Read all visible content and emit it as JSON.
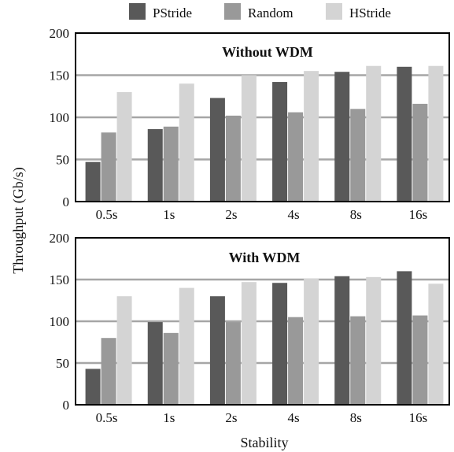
{
  "colors": {
    "PStride": "#595959",
    "Random": "#999999",
    "HStride": "#d4d4d4",
    "grid": "#a6a6a6",
    "frame": "#000000"
  },
  "chart_data": {
    "type": "bar",
    "ylabel": "Throughput (Gb/s)",
    "xlabel": "Stability",
    "legend": {
      "placement": "top-center",
      "entries": [
        "PStride",
        "Random",
        "HStride"
      ]
    },
    "categories": [
      "0.5s",
      "1s",
      "2s",
      "4s",
      "8s",
      "16s"
    ],
    "ylim": [
      0,
      200
    ],
    "yticks": [
      0,
      50,
      100,
      150,
      200
    ],
    "grid": "horizontal",
    "panels": [
      {
        "title": "Without WDM",
        "series": [
          {
            "name": "PStride",
            "values": [
              47,
              86,
              123,
              142,
              154,
              160
            ]
          },
          {
            "name": "Random",
            "values": [
              82,
              89,
              102,
              106,
              110,
              116
            ]
          },
          {
            "name": "HStride",
            "values": [
              130,
              140,
              150,
              155,
              161,
              161
            ]
          }
        ]
      },
      {
        "title": "With WDM",
        "series": [
          {
            "name": "PStride",
            "values": [
              43,
              99,
              130,
              146,
              154,
              160
            ]
          },
          {
            "name": "Random",
            "values": [
              80,
              86,
              99,
              105,
              106,
              107
            ]
          },
          {
            "name": "HStride",
            "values": [
              130,
              140,
              147,
              151,
              153,
              145
            ]
          }
        ]
      }
    ]
  }
}
